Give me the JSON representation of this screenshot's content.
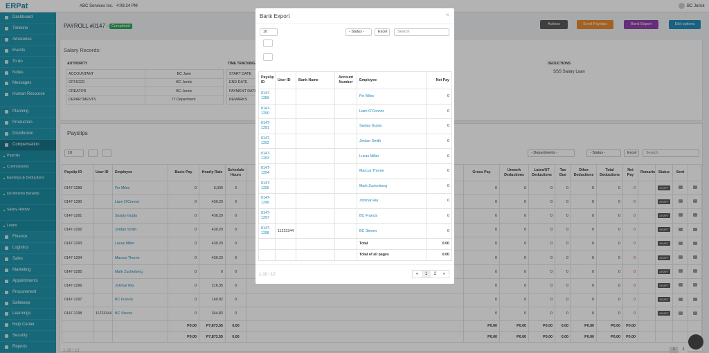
{
  "topbar": {
    "logo": "ERPat",
    "company": "ABC Services Inc.",
    "time": "4:08:24 PM",
    "user": "BC Jerick"
  },
  "sidebar": {
    "top": [
      "Dashboard",
      "Timeline",
      "Advisories",
      "Events",
      "To do",
      "Notes",
      "Messages",
      "Human Resource",
      "Planning",
      "Production",
      "Distribution",
      "Compensation"
    ],
    "sub": [
      "Payrolls",
      "Commissions",
      "Earnings & Deductions",
      "De Minimis Benefits",
      "Salary History",
      "Loans"
    ],
    "bottom": [
      "Finance",
      "Logistics",
      "Sales",
      "Marketing",
      "Appointments",
      "Procurement",
      "Safekeep",
      "Learnings",
      "Help Center",
      "Security",
      "Reports"
    ]
  },
  "header": {
    "title": "PAYROLL #0147 -",
    "status": "Completed",
    "buttons": [
      "Actions",
      "Send Payslips",
      "Bank Export",
      "Edit options"
    ]
  },
  "salary_records": {
    "title": "Salary Records:",
    "authority": {
      "heading": "AUTHORITY",
      "rows": [
        [
          "ACCOUNTANT",
          "BC Jane"
        ],
        [
          "OFFICER",
          "BC Jerick"
        ],
        [
          "CREATOR",
          "BC Jerick"
        ],
        [
          "DEPARTMENTS",
          "IT Department"
        ]
      ]
    },
    "time_tracking": {
      "heading": "TIME TRACKING",
      "rows": [
        "START DATE",
        "END DATE",
        "PAYMENT DATE",
        "REMARKS"
      ]
    },
    "deductions": {
      "heading": "DEDUCTIONS",
      "items": [
        "SSS Salary Loan"
      ]
    }
  },
  "payslips": {
    "title": "Payslips",
    "page_size": "10",
    "departments": "- Departments -",
    "status": "- Status -",
    "excel": "Excel",
    "search": "Search",
    "columns": {
      "id": "Payslip ID",
      "user_id": "User ID",
      "employee": "Employee",
      "basic_pay": "Basic Pay",
      "hourly_rate": "Hourly Rate",
      "schedule_hours": "Schedule Hours",
      "gross_pay": "Gross Pay",
      "unwork": "Unwork Deductions",
      "lates": "Lates/UT Deductions",
      "tax_due": "Tax Due",
      "other": "Other Deductions",
      "total_deductions": "Total Deductions",
      "net_pay": "Net Pay",
      "remarks": "Remarks",
      "status": "Status",
      "sent": "Sent"
    },
    "rows": [
      {
        "id": "0147-1289",
        "employee": "Fin Miles",
        "basic_pay": "0",
        "hourly_rate": "5,000",
        "schedule_hours": "0",
        "gross_pay": "0",
        "unwork": "0",
        "lates": "0",
        "tax_due": "0",
        "other": "0",
        "total_deductions": "0",
        "net_pay": "0",
        "status": "DRAFT"
      },
      {
        "id": "0147-1290",
        "employee": "Liam O'Connor",
        "basic_pay": "0",
        "hourly_rate": "430.29",
        "schedule_hours": "0",
        "gross_pay": "0",
        "unwork": "0",
        "lates": "0",
        "tax_due": "0",
        "other": "0",
        "total_deductions": "0",
        "net_pay": "0",
        "status": "DRAFT"
      },
      {
        "id": "0147-1291",
        "employee": "Sanjay Gupta",
        "basic_pay": "0",
        "hourly_rate": "430.29",
        "schedule_hours": "0",
        "gross_pay": "0",
        "unwork": "0",
        "lates": "0",
        "tax_due": "0",
        "other": "0",
        "total_deductions": "0",
        "net_pay": "0",
        "status": "DRAFT"
      },
      {
        "id": "0147-1292",
        "employee": "Jordan Smith",
        "basic_pay": "0",
        "hourly_rate": "430.29",
        "schedule_hours": "0",
        "gross_pay": "0",
        "unwork": "0",
        "lates": "0",
        "tax_due": "0",
        "other": "0",
        "total_deductions": "0",
        "net_pay": "0",
        "status": "DRAFT"
      },
      {
        "id": "0147-1293",
        "employee": "Lucas Miller",
        "basic_pay": "0",
        "hourly_rate": "430.29",
        "schedule_hours": "0",
        "gross_pay": "0",
        "unwork": "0",
        "lates": "0",
        "tax_due": "0",
        "other": "0",
        "total_deductions": "0",
        "net_pay": "0",
        "status": "DRAFT"
      },
      {
        "id": "0147-1294",
        "employee": "Marcus Thorne",
        "basic_pay": "0",
        "hourly_rate": "430.29",
        "schedule_hours": "0",
        "gross_pay": "0",
        "unwork": "0",
        "lates": "0",
        "tax_due": "0",
        "other": "0",
        "total_deductions": "0",
        "net_pay": "0",
        "status": "DRAFT"
      },
      {
        "id": "0147-1295",
        "employee": "Mark Zuckerberg",
        "basic_pay": "0",
        "hourly_rate": "0",
        "schedule_hours": "0",
        "gross_pay": "0",
        "unwork": "0",
        "lates": "0",
        "tax_due": "0",
        "other": "0",
        "total_deductions": "0",
        "net_pay": "0",
        "status": "DRAFT"
      },
      {
        "id": "0147-1296",
        "employee": "Johmar Ria",
        "basic_pay": "0",
        "hourly_rate": "216.35",
        "schedule_hours": "0",
        "gross_pay": "0",
        "unwork": "0",
        "lates": "0",
        "tax_due": "0",
        "other": "0",
        "total_deductions": "0",
        "net_pay": "0",
        "status": "DRAFT"
      },
      {
        "id": "0147-1297",
        "employee": "BC Francis",
        "basic_pay": "0",
        "hourly_rate": "160.92",
        "schedule_hours": "0",
        "gross_pay": "0",
        "unwork": "0",
        "lates": "0",
        "tax_due": "0",
        "other": "0",
        "total_deductions": "0",
        "net_pay": "0",
        "status": "DRAFT"
      },
      {
        "id": "0147-1298",
        "user_id": "11223344",
        "employee": "BC Steven",
        "basic_pay": "0",
        "hourly_rate": "344.83",
        "schedule_hours": "0",
        "gross_pay": "0",
        "unwork": "0",
        "lates": "0",
        "tax_due": "0",
        "other": "0",
        "total_deductions": "0",
        "net_pay": "0",
        "status": "DRAFT"
      }
    ],
    "totals": [
      {
        "basic_pay": "P0.00",
        "hourly_rate": "P7,873.55",
        "schedule_hours": "0.00",
        "gross_pay": "P0.00",
        "unwork": "P0.00",
        "lates": "P0.00",
        "tax_due": "0.00",
        "other": "P0.00",
        "total_deductions": "P0.00",
        "net_pay": "P0.00"
      },
      {
        "basic_pay": "P0.00",
        "hourly_rate": "P7,873.55",
        "schedule_hours": "0.00",
        "gross_pay": "P0.00",
        "unwork": "P0.00",
        "lates": "P0.00",
        "tax_due": "0.00",
        "other": "P0.00",
        "total_deductions": "P0.00",
        "net_pay": "P0.00"
      }
    ],
    "footer": "1-10 / 12",
    "pages": [
      "1",
      "2"
    ]
  },
  "modal": {
    "title": "Bank Export",
    "page_size": "10",
    "status": "- Status -",
    "excel": "Excel",
    "search": "Search",
    "columns": {
      "id": "Payslip ID",
      "user_id": "User ID",
      "bank": "Bank Name",
      "account": "Account Number",
      "employee": "Employee",
      "net_pay": "Net Pay"
    },
    "rows": [
      {
        "id": "0147-1289",
        "employee": "Fin Miles",
        "net_pay": "0"
      },
      {
        "id": "0147-1290",
        "employee": "Liam O'Connor",
        "net_pay": "0"
      },
      {
        "id": "0147-1291",
        "employee": "Sanjay Gupta",
        "net_pay": "0"
      },
      {
        "id": "0147-1292",
        "employee": "Jordan Smith",
        "net_pay": "0"
      },
      {
        "id": "0147-1293",
        "employee": "Lucas Miller",
        "net_pay": "0"
      },
      {
        "id": "0147-1294",
        "employee": "Marcus Thorne",
        "net_pay": "0"
      },
      {
        "id": "0147-1295",
        "employee": "Mark Zuckerberg",
        "net_pay": "0"
      },
      {
        "id": "0147-1296",
        "employee": "Johmar Ria",
        "net_pay": "0"
      },
      {
        "id": "0147-1297",
        "employee": "BC Francis",
        "net_pay": "0"
      },
      {
        "id": "0147-1298",
        "user_id": "11223344",
        "employee": "BC Steven",
        "net_pay": "0"
      }
    ],
    "total_label": "Total",
    "total": "0.00",
    "total_all_label": "Total of all pages",
    "total_all": "0.00",
    "footer": "1-10 / 12",
    "pages": [
      "1",
      "2"
    ]
  }
}
